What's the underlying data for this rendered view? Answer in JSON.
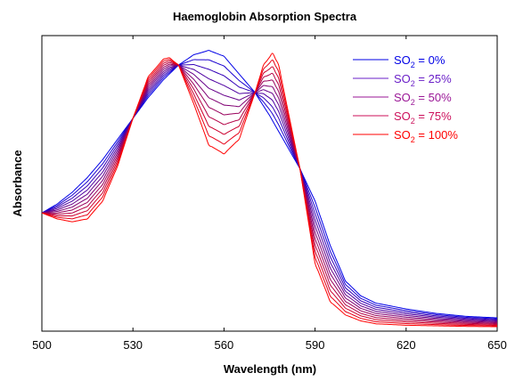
{
  "chart_data": {
    "type": "line",
    "title": "Haemoglobin Absorption Spectra",
    "xlabel": "Wavelength (nm)",
    "ylabel": "Absorbance",
    "xlim": [
      500,
      650
    ],
    "ylim": [
      0,
      1
    ],
    "xticks": [
      "500",
      "530",
      "560",
      "590",
      "620",
      "650"
    ],
    "grid": false,
    "legend_position": "top-right",
    "legend": [
      {
        "prefix": "SO",
        "sub": "2",
        "suffix": " = 0%",
        "color": "#0000e6"
      },
      {
        "prefix": "SO",
        "sub": "2",
        "suffix": " = 25%",
        "color": "#6a1fc8"
      },
      {
        "prefix": "SO",
        "sub": "2",
        "suffix": " = 50%",
        "color": "#9a1696"
      },
      {
        "prefix": "SO",
        "sub": "2",
        "suffix": " = 75%",
        "color": "#cc0f5a"
      },
      {
        "prefix": "SO",
        "sub": "2",
        "suffix": " = 100%",
        "color": "#ff0000"
      }
    ],
    "series": [
      {
        "name": "SO2 = 0%",
        "color": "#0000e6",
        "x": [
          500,
          505,
          510,
          515,
          520,
          525,
          530,
          535,
          540,
          545,
          550,
          555,
          560,
          565,
          570,
          575,
          580,
          585,
          590,
          595,
          600,
          605,
          610,
          620,
          630,
          640,
          650
        ],
        "y": [
          0.4,
          0.43,
          0.47,
          0.52,
          0.58,
          0.65,
          0.72,
          0.79,
          0.85,
          0.9,
          0.935,
          0.95,
          0.93,
          0.87,
          0.81,
          0.73,
          0.64,
          0.55,
          0.44,
          0.29,
          0.17,
          0.12,
          0.095,
          0.075,
          0.06,
          0.05,
          0.045
        ]
      },
      {
        "name": "SO2 = 100%",
        "color": "#ff0000",
        "x": [
          500,
          505,
          510,
          515,
          520,
          525,
          530,
          535,
          540,
          542,
          545,
          550,
          555,
          560,
          565,
          570,
          573,
          576,
          578,
          580,
          585,
          590,
          595,
          600,
          605,
          610,
          620,
          630,
          640,
          650
        ],
        "y": [
          0.4,
          0.38,
          0.37,
          0.38,
          0.44,
          0.56,
          0.72,
          0.86,
          0.92,
          0.925,
          0.9,
          0.77,
          0.63,
          0.6,
          0.65,
          0.8,
          0.9,
          0.94,
          0.9,
          0.8,
          0.55,
          0.23,
          0.1,
          0.055,
          0.035,
          0.025,
          0.02,
          0.018,
          0.016,
          0.015
        ]
      }
    ]
  }
}
